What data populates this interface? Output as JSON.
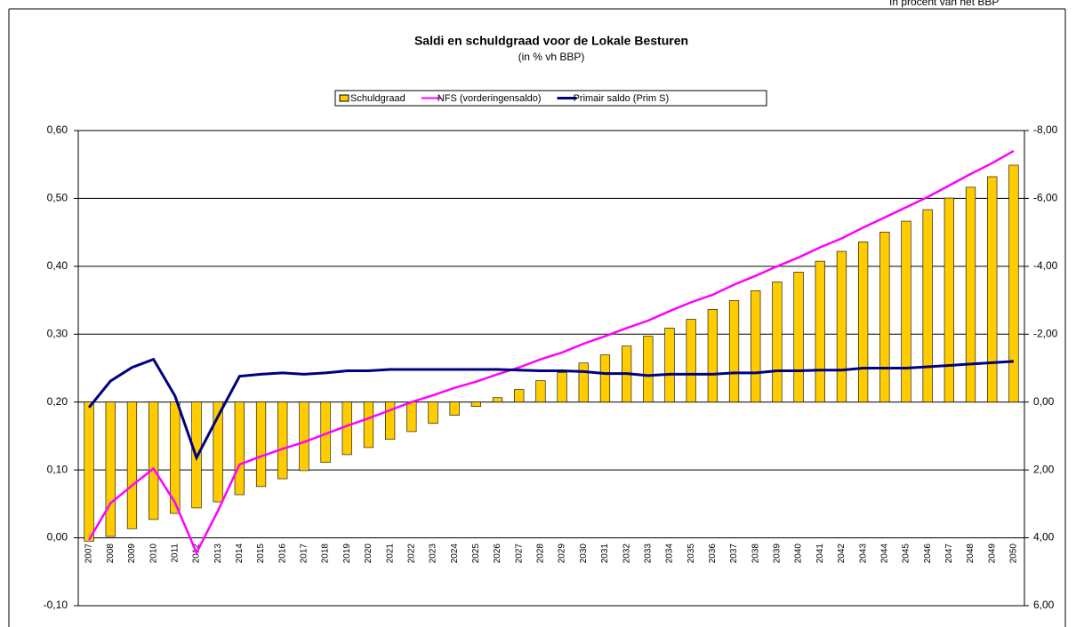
{
  "header": "In procent van het BBP",
  "chart_data": {
    "type": "bar-line",
    "title": "Saldi en schuldgraad voor de Lokale Besturen",
    "subtitle": "(in % vh BBP)",
    "categories": [
      "2007",
      "2008",
      "2009",
      "2010",
      "2011",
      "2012",
      "2013",
      "2014",
      "2015",
      "2016",
      "2017",
      "2018",
      "2019",
      "2020",
      "2021",
      "2022",
      "2023",
      "2024",
      "2025",
      "2026",
      "2027",
      "2028",
      "2029",
      "2030",
      "2031",
      "2032",
      "2033",
      "2034",
      "2035",
      "2036",
      "2037",
      "2038",
      "2039",
      "2040",
      "2041",
      "2042",
      "2043",
      "2044",
      "2045",
      "2046",
      "2047",
      "2048",
      "2049",
      "2050"
    ],
    "series": [
      {
        "name": "Schuldgraad",
        "type": "bar",
        "axis": "y2",
        "color": "#ffcc00",
        "values": [
          4.1,
          3.96,
          3.73,
          3.46,
          3.28,
          3.12,
          2.94,
          2.73,
          2.49,
          2.26,
          2.02,
          1.78,
          1.55,
          1.34,
          1.1,
          0.87,
          0.63,
          0.39,
          0.13,
          -0.13,
          -0.37,
          -0.63,
          -0.87,
          -1.15,
          -1.39,
          -1.65,
          -1.94,
          -2.18,
          -2.44,
          -2.73,
          -2.99,
          -3.28,
          -3.54,
          -3.83,
          -4.15,
          -4.44,
          -4.72,
          -5.01,
          -5.33,
          -5.67,
          -6.01,
          -6.33,
          -6.64,
          -6.98
        ]
      },
      {
        "name": "NFS (vorderingensaldo)",
        "type": "line",
        "color": "#ff00ff",
        "values": [
          -0.003,
          0.051,
          0.077,
          0.102,
          0.052,
          -0.022,
          0.04,
          0.108,
          0.12,
          0.131,
          0.141,
          0.153,
          0.165,
          0.176,
          0.188,
          0.2,
          0.21,
          0.221,
          0.23,
          0.241,
          0.251,
          0.263,
          0.273,
          0.286,
          0.297,
          0.309,
          0.32,
          0.334,
          0.347,
          0.358,
          0.373,
          0.386,
          0.4,
          0.413,
          0.428,
          0.441,
          0.457,
          0.472,
          0.487,
          0.502,
          0.519,
          0.536,
          0.552,
          0.57
        ]
      },
      {
        "name": "Primair saldo (Prim S)",
        "type": "line",
        "color": "#000080",
        "values": [
          0.192,
          0.231,
          0.251,
          0.263,
          0.209,
          0.118,
          0.179,
          0.238,
          0.241,
          0.243,
          0.241,
          0.243,
          0.246,
          0.246,
          0.248,
          0.248,
          0.248,
          0.248,
          0.248,
          0.248,
          0.247,
          0.246,
          0.246,
          0.245,
          0.242,
          0.242,
          0.239,
          0.241,
          0.241,
          0.241,
          0.243,
          0.243,
          0.246,
          0.246,
          0.247,
          0.247,
          0.25,
          0.25,
          0.25,
          0.252,
          0.254,
          0.256,
          0.258,
          0.26
        ]
      }
    ],
    "ylim": [
      -0.1,
      0.6
    ],
    "yticks": [
      {
        "value": -0.1,
        "label": "-0,10"
      },
      {
        "value": 0,
        "label": "0,00"
      },
      {
        "value": 0.1,
        "label": "0,10"
      },
      {
        "value": 0.2,
        "label": "0,20"
      },
      {
        "value": 0.3,
        "label": "0,30"
      },
      {
        "value": 0.4,
        "label": "0,40"
      },
      {
        "value": 0.5,
        "label": "0,50"
      },
      {
        "value": 0.6,
        "label": "0,60"
      }
    ],
    "y2lim": [
      6,
      -8
    ],
    "y2ticks": [
      {
        "value": 6,
        "label": "6,00"
      },
      {
        "value": 4,
        "label": "4,00"
      },
      {
        "value": 2,
        "label": "2,00"
      },
      {
        "value": 0,
        "label": "0,00"
      },
      {
        "value": -2,
        "label": "-2,00"
      },
      {
        "value": -4,
        "label": "-4,00"
      },
      {
        "value": -6,
        "label": "-6,00"
      },
      {
        "value": -8,
        "label": "-8,00"
      }
    ],
    "grid": true,
    "legend": "top"
  }
}
